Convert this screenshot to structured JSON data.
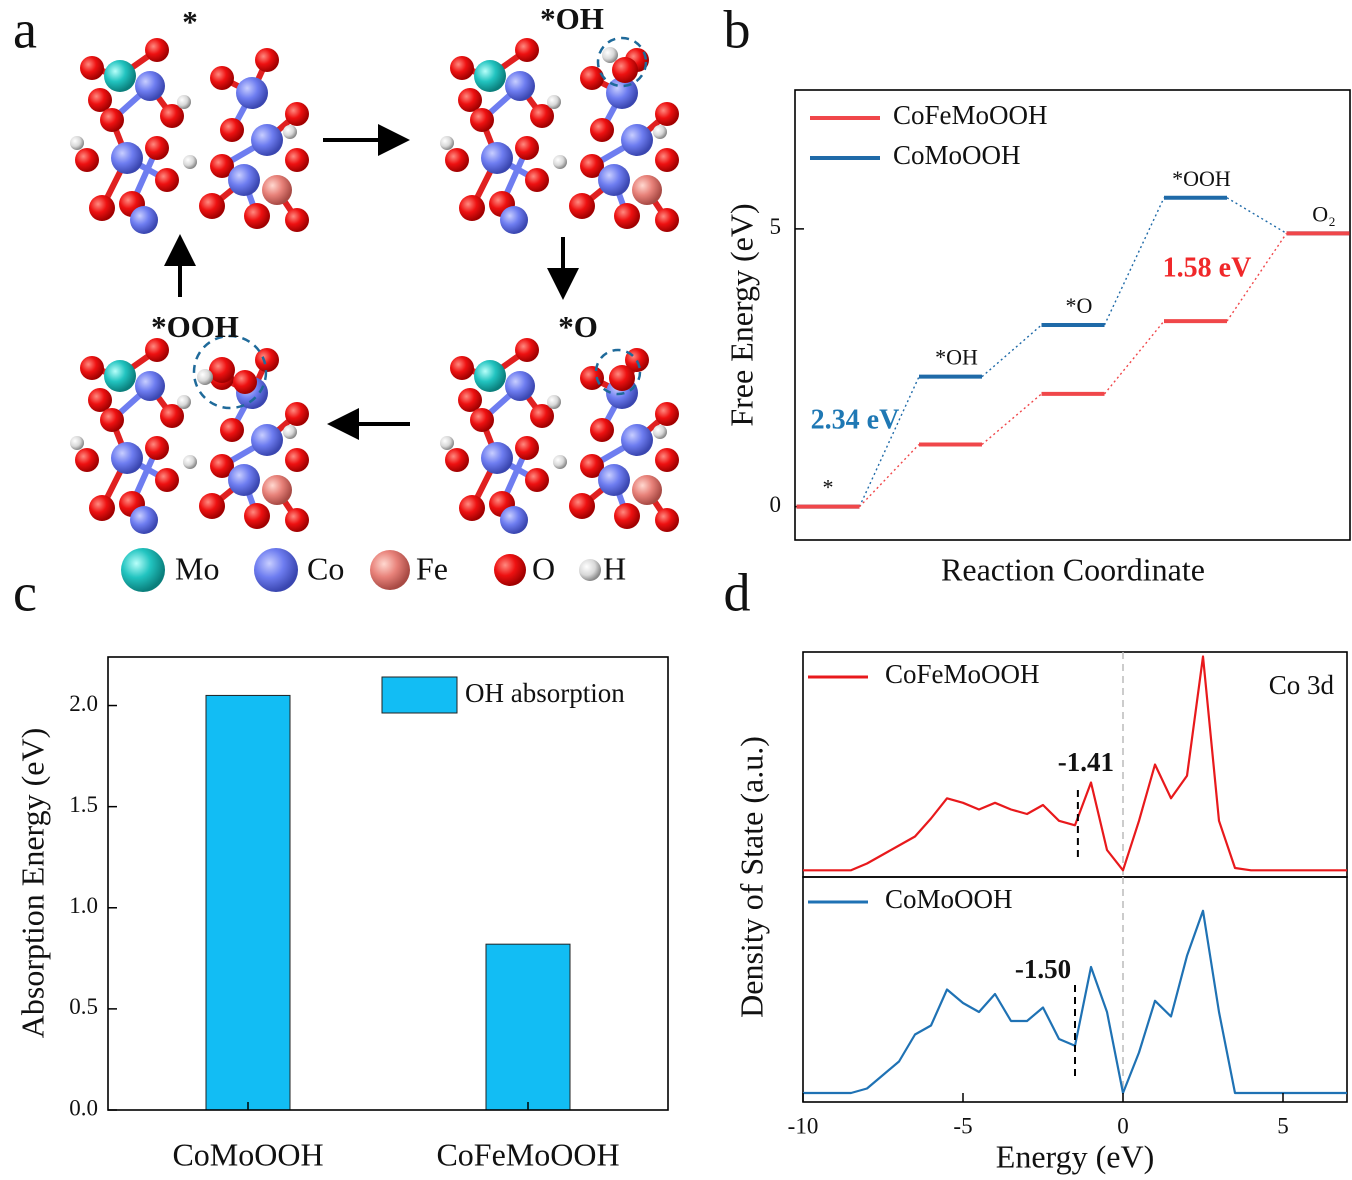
{
  "panel_labels": [
    "a",
    "b",
    "c",
    "d"
  ],
  "scheme": {
    "states": [
      "*",
      "*OH",
      "*O",
      "*OOH"
    ],
    "atoms": [
      "Mo",
      "Co",
      "Fe",
      "O",
      "H"
    ]
  },
  "chart_data": [
    {
      "type": "step",
      "xlabel": "Reaction Coordinate",
      "ylabel": "Free Energy (eV)",
      "categories": [
        "*",
        "*OH",
        "*O",
        "*OOH",
        "O₂"
      ],
      "series": [
        {
          "name": "CoFeMoOOH",
          "color": "#f0474a",
          "values": [
            0,
            1.12,
            2.03,
            3.34,
            4.92
          ]
        },
        {
          "name": "CoMoOOH",
          "color": "#1f6aa8",
          "values": [
            0,
            2.34,
            3.27,
            5.56,
            4.92
          ]
        }
      ],
      "ylim": [
        -0.6,
        7.5
      ],
      "yticks": [
        0,
        5
      ],
      "legend": "upper left",
      "annotations": [
        {
          "text": "2.34 eV",
          "color": "#1f78b4"
        },
        {
          "text": "1.58 eV",
          "color": "#f0282a"
        }
      ]
    },
    {
      "type": "bar",
      "ylabel": "Absorption Energy (eV)",
      "categories": [
        "CoMoOOH",
        "CoFeMoOOH"
      ],
      "series": [
        {
          "name": "OH absorption",
          "color": "#12bdf4",
          "values": [
            2.05,
            0.82
          ]
        }
      ],
      "ylim": [
        0,
        2.24
      ],
      "yticks": [
        {
          "value": 0,
          "label": "0.0"
        },
        0.5,
        {
          "value": 1,
          "label": "1.0"
        },
        1.5,
        {
          "value": 2,
          "label": "2.0"
        }
      ],
      "legend": "upper right"
    },
    {
      "type": "line",
      "xlabel": "Energy (eV)",
      "ylabel": "Density of State (a.u.)",
      "note": "Co 3d",
      "x": [
        -10,
        -9.5,
        -9,
        -8.5,
        -8,
        -7.5,
        -7,
        -6.5,
        -6,
        -5.5,
        -5,
        -4.5,
        -4,
        -3.5,
        -3,
        -2.5,
        -2,
        -1.5,
        -1,
        -0.5,
        0,
        0.5,
        1,
        1.5,
        2,
        2.5,
        3,
        3.5,
        4,
        4.5,
        5,
        5.5,
        6,
        6.5,
        7
      ],
      "xlim": [
        -10,
        7
      ],
      "xticks": [
        -10,
        -5,
        0,
        5
      ],
      "ylim": [
        0,
        10
      ],
      "reference_line": 0,
      "series": [
        {
          "name": "CoFeMoOOH",
          "color": "#e8191c",
          "values": [
            0.3,
            0.3,
            0.3,
            0.3,
            0.6,
            1.0,
            1.4,
            1.8,
            2.6,
            3.5,
            3.3,
            3.0,
            3.3,
            3.0,
            2.8,
            3.2,
            2.5,
            2.3,
            4.2,
            1.2,
            0.3,
            2.5,
            5.0,
            3.5,
            4.5,
            9.8,
            2.5,
            0.4,
            0.3,
            0.3,
            0.3,
            0.3,
            0.3,
            0.3,
            0.3
          ],
          "annotation": {
            "x": -1.41,
            "text": "-1.41"
          }
        },
        {
          "name": "CoMoOOH",
          "color": "#1f72b4",
          "values": [
            0.4,
            0.4,
            0.4,
            0.4,
            0.6,
            1.2,
            1.8,
            3.0,
            3.4,
            5.0,
            4.4,
            4.0,
            4.8,
            3.6,
            3.6,
            4.2,
            2.8,
            2.5,
            6.0,
            4.0,
            0.4,
            2.2,
            4.5,
            3.8,
            6.5,
            8.5,
            4.0,
            0.4,
            0.4,
            0.4,
            0.4,
            0.4,
            0.4,
            0.4,
            0.4
          ],
          "annotation": {
            "x": -1.5,
            "text": "-1.50"
          }
        }
      ]
    }
  ]
}
